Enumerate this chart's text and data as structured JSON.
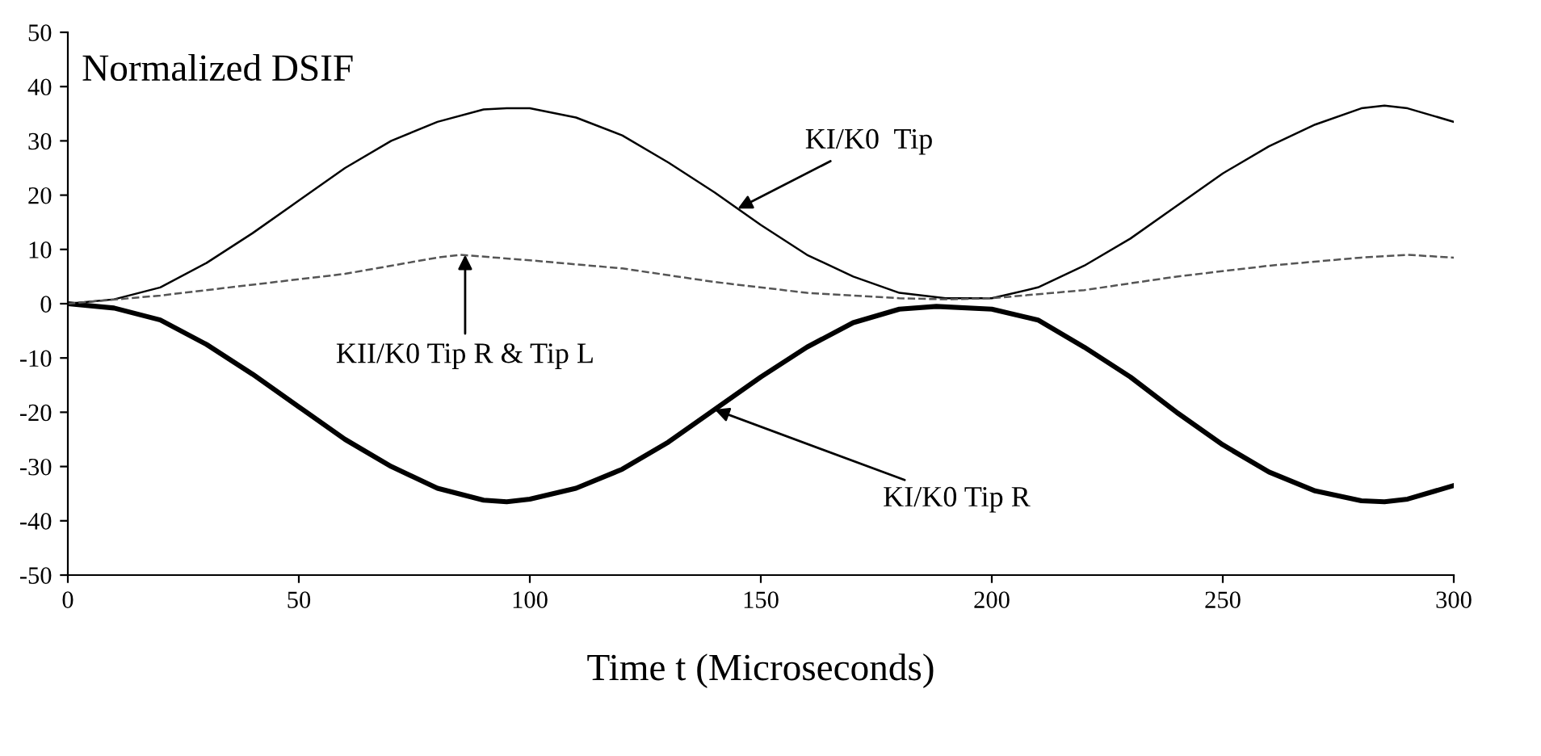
{
  "chart_data": {
    "type": "line",
    "xlabel": "Time t (Microseconds)",
    "xlim": [
      0,
      300
    ],
    "xticks": [
      0,
      50,
      100,
      150,
      200,
      250,
      300
    ],
    "ylim": [
      -50,
      50
    ],
    "yticks": [
      -50,
      -40,
      -30,
      -20,
      -10,
      0,
      10,
      20,
      30,
      40,
      50
    ],
    "grid": false,
    "legend": false,
    "marker": "none",
    "series": [
      {
        "color": "#000000",
        "line_style": "solid",
        "x": [
          0,
          10,
          20,
          30,
          40,
          50,
          60,
          70,
          80,
          90,
          95,
          100,
          110,
          120,
          130,
          140,
          150,
          160,
          170,
          180,
          190,
          200,
          210,
          220,
          230,
          240,
          250,
          260,
          270,
          280,
          285,
          290,
          300
        ],
        "values": [
          0,
          0.8,
          3,
          7.5,
          13,
          19,
          25,
          30,
          33.5,
          35.8,
          36,
          36,
          34.3,
          31,
          26,
          20.5,
          14.5,
          9,
          5,
          2,
          1,
          1,
          3,
          7,
          12,
          18,
          24,
          29,
          33,
          36,
          36.5,
          36,
          33.5
        ]
      },
      {
        "color": "#000000",
        "line_style": "solid",
        "x": [
          0,
          10,
          20,
          30,
          40,
          50,
          60,
          70,
          80,
          90,
          95,
          100,
          110,
          120,
          130,
          140,
          150,
          160,
          170,
          180,
          188,
          200,
          210,
          220,
          230,
          240,
          250,
          260,
          270,
          280,
          285,
          290,
          300
        ],
        "values": [
          0,
          -0.8,
          -3,
          -7.5,
          -13,
          -19,
          -25,
          -30,
          -34,
          -36.2,
          -36.5,
          -36,
          -34,
          -30.5,
          -25.5,
          -19.5,
          -13.5,
          -8,
          -3.5,
          -1,
          -0.5,
          -1,
          -3,
          -8,
          -13.5,
          -20,
          -26,
          -31,
          -34.5,
          -36.3,
          -36.5,
          -36,
          -33.5
        ]
      },
      {
        "color": "#555555",
        "line_style": "dashed",
        "x": [
          0,
          20,
          40,
          60,
          70,
          80,
          85,
          100,
          120,
          140,
          160,
          180,
          190,
          200,
          220,
          240,
          260,
          280,
          290,
          300
        ],
        "values": [
          0,
          1.5,
          3.5,
          5.5,
          7,
          8.5,
          9,
          8,
          6.5,
          4,
          2,
          1,
          0.8,
          1,
          2.5,
          5,
          7,
          8.5,
          9,
          8.5
        ]
      }
    ],
    "annotations": [
      "Normalized DSIF",
      {
        "text": "KI/K0  Tip",
        "x": 145,
        "y": 17.5
      },
      {
        "text": "KII/K0 Tip R & Tip L",
        "x": 86,
        "y": 9
      },
      {
        "text": "KI/K0 Tip R",
        "x": 140,
        "y": -19.5
      }
    ]
  }
}
